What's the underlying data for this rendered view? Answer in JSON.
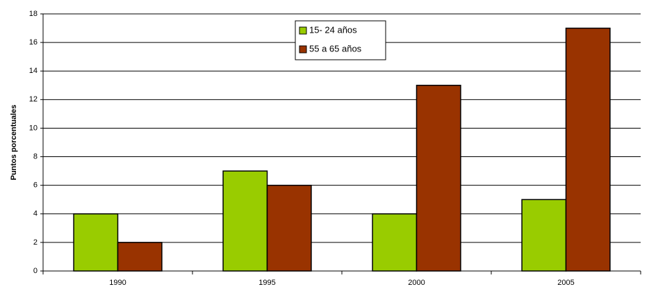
{
  "chart_data": {
    "type": "bar",
    "y_label": "Puntos porcentuales",
    "categories": [
      "1990",
      "1995",
      "2000",
      "2005"
    ],
    "series": [
      {
        "name": "15- 24 años",
        "color": "#99cc00",
        "values": [
          4,
          7,
          4,
          5
        ]
      },
      {
        "name": "55 a 65 años",
        "color": "#993300",
        "values": [
          2,
          6,
          13,
          17
        ]
      }
    ],
    "ylim": [
      0,
      18
    ],
    "yticks": [
      0,
      2,
      4,
      6,
      8,
      10,
      12,
      14,
      16,
      18
    ],
    "grid": true,
    "legend": "top"
  }
}
